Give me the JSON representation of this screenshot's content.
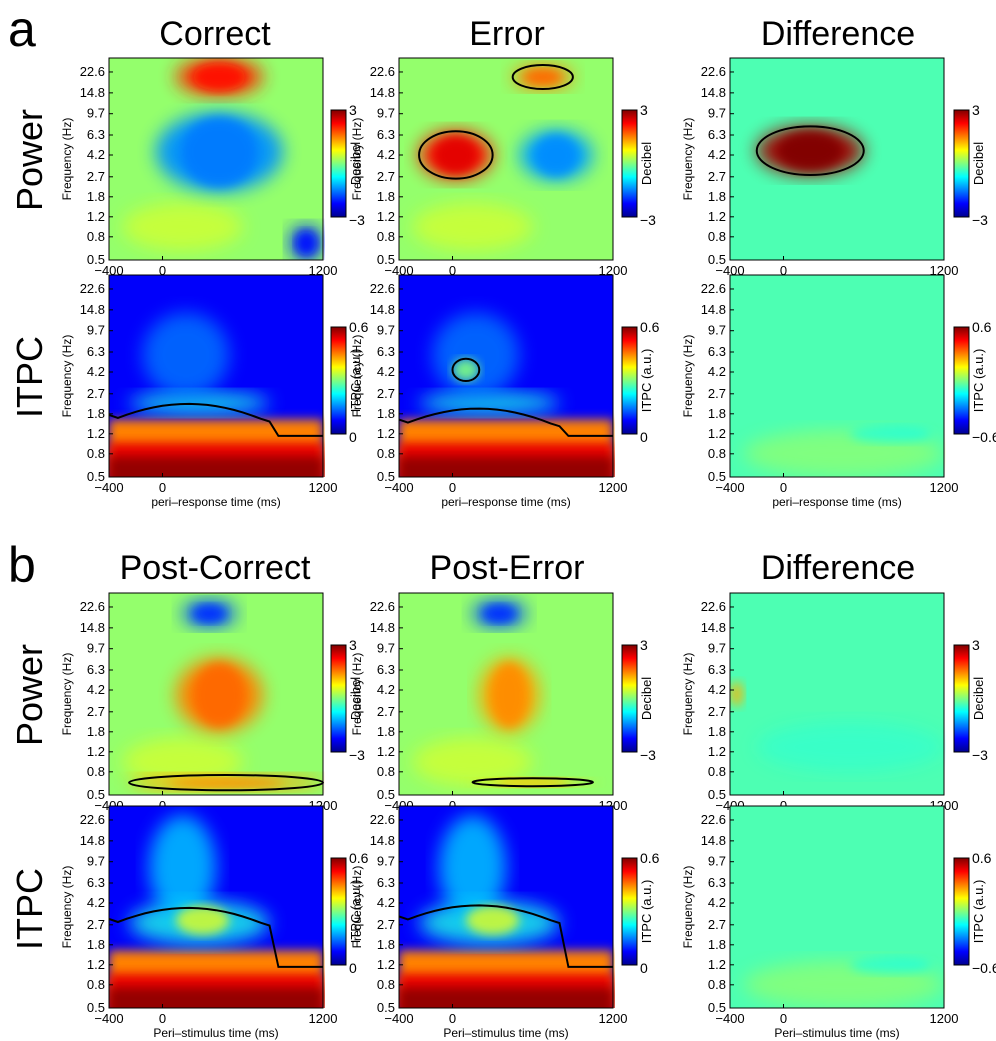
{
  "figure": {
    "panels": [
      {
        "letter": "a",
        "columns": [
          "Correct",
          "Error",
          "Difference"
        ],
        "rows": [
          "Power",
          "ITPC"
        ],
        "xlabel": "peri–response time (ms)"
      },
      {
        "letter": "b",
        "columns": [
          "Post-Correct",
          "Post-Error",
          "Difference"
        ],
        "rows": [
          "Power",
          "ITPC"
        ],
        "xlabel": "Peri–stimulus time (ms)"
      }
    ],
    "ylabel": "Frequency (Hz)",
    "x_ticks": [
      "-400",
      "0",
      "1200"
    ],
    "y_ticks": [
      "22.6",
      "14.8",
      "9.7",
      "6.3",
      "4.2",
      "2.7",
      "1.8",
      "1.2",
      "0.8",
      "0.5"
    ],
    "colorbars": {
      "power": {
        "label": "Decibel",
        "max": "3",
        "min": "-3"
      },
      "itpc": {
        "label": "ITPC (a.u.)",
        "max": "0.6",
        "min": "0"
      },
      "itpc_diff": {
        "label": "ITPC (a.u.)",
        "max": "0.6",
        "min": "-0.6"
      }
    },
    "colormap": [
      "#00008f",
      "#0000ff",
      "#0080ff",
      "#00ffff",
      "#80ff80",
      "#ffff00",
      "#ff8000",
      "#ff0000",
      "#800000"
    ]
  },
  "chart_data": {
    "type": "heatmap",
    "x": {
      "label_a": "peri–response time (ms)",
      "label_b": "Peri–stimulus time (ms)",
      "range": [
        -400,
        1200
      ],
      "ticks": [
        -400,
        0,
        1200
      ]
    },
    "y": {
      "label": "Frequency (Hz)",
      "scale": "log",
      "ticks": [
        22.6,
        14.8,
        9.7,
        6.3,
        4.2,
        2.7,
        1.8,
        1.2,
        0.8,
        0.5
      ]
    },
    "maps": [
      {
        "panel": "a",
        "condition": "Correct",
        "measure": "Power",
        "clim": [
          -3,
          3
        ],
        "features": [
          {
            "kind": "increase",
            "time_ms": [
              100,
              750
            ],
            "freq_hz": [
              14,
              30
            ],
            "peak_db": 2
          },
          {
            "kind": "decrease",
            "time_ms": [
              -50,
              900
            ],
            "freq_hz": [
              2,
              10
            ],
            "peak_db": -1.4
          },
          {
            "kind": "decrease",
            "time_ms": [
              950,
              1200
            ],
            "freq_hz": [
              0.5,
              1
            ],
            "peak_db": -2
          }
        ]
      },
      {
        "panel": "a",
        "condition": "Error",
        "measure": "Power",
        "clim": [
          -3,
          3
        ],
        "features": [
          {
            "kind": "significant increase (contoured)",
            "time_ms": [
              -250,
              300
            ],
            "freq_hz": [
              2.6,
              6.8
            ],
            "peak_db": 2.2
          },
          {
            "kind": "significant increase (contoured)",
            "time_ms": [
              450,
              900
            ],
            "freq_hz": [
              16,
              26
            ],
            "peak_db": 1.5
          },
          {
            "kind": "decrease",
            "time_ms": [
              500,
              1050
            ],
            "freq_hz": [
              2.5,
              7
            ],
            "peak_db": -1.3
          }
        ]
      },
      {
        "panel": "a",
        "condition": "Difference",
        "measure": "Power",
        "clim": [
          -3,
          3
        ],
        "features": [
          {
            "kind": "significant increase (contoured)",
            "time_ms": [
              -200,
              600
            ],
            "freq_hz": [
              2.8,
              7.5
            ],
            "peak_db": 2.8
          }
        ]
      },
      {
        "panel": "a",
        "condition": "Correct",
        "measure": "ITPC",
        "clim": [
          0,
          0.6
        ],
        "features": [
          {
            "kind": "significant phase locking (contoured)",
            "time_ms": [
              -400,
              1200
            ],
            "freq_hz": [
              0.5,
              2.2
            ],
            "peak": 0.6
          }
        ]
      },
      {
        "panel": "a",
        "condition": "Error",
        "measure": "ITPC",
        "clim": [
          0,
          0.6
        ],
        "features": [
          {
            "kind": "significant phase locking (contoured)",
            "time_ms": [
              -400,
              1200
            ],
            "freq_hz": [
              0.5,
              2.0
            ],
            "peak": 0.6
          },
          {
            "kind": "significant phase locking (contoured)",
            "time_ms": [
              0,
              200
            ],
            "freq_hz": [
              3.5,
              5.5
            ],
            "peak": 0.35
          }
        ]
      },
      {
        "panel": "a",
        "condition": "Difference",
        "measure": "ITPC",
        "clim": [
          -0.6,
          0.6
        ],
        "features": []
      },
      {
        "panel": "b",
        "condition": "Post-Correct",
        "measure": "Power",
        "clim": [
          -3,
          3
        ],
        "features": [
          {
            "kind": "increase",
            "time_ms": [
              100,
              750
            ],
            "freq_hz": [
              1.8,
              8
            ],
            "peak_db": 1.5
          },
          {
            "kind": "decrease",
            "time_ms": [
              150,
              550
            ],
            "freq_hz": [
              15,
              26
            ],
            "peak_db": -1.8
          },
          {
            "kind": "significant increase (contoured)",
            "time_ms": [
              -250,
              1200
            ],
            "freq_hz": [
              0.55,
              0.75
            ],
            "peak_db": 1.3
          }
        ]
      },
      {
        "panel": "b",
        "condition": "Post-Error",
        "measure": "Power",
        "clim": [
          -3,
          3
        ],
        "features": [
          {
            "kind": "increase",
            "time_ms": [
              200,
              650
            ],
            "freq_hz": [
              1.8,
              8
            ],
            "peak_db": 1.3
          },
          {
            "kind": "decrease",
            "time_ms": [
              150,
              550
            ],
            "freq_hz": [
              15,
              26
            ],
            "peak_db": -1.8
          },
          {
            "kind": "significant increase (contoured)",
            "time_ms": [
              150,
              1050
            ],
            "freq_hz": [
              0.6,
              0.7
            ],
            "peak_db": 1.0
          }
        ]
      },
      {
        "panel": "b",
        "condition": "Difference",
        "measure": "Power",
        "clim": [
          -3,
          3
        ],
        "features": []
      },
      {
        "panel": "b",
        "condition": "Post-Correct",
        "measure": "ITPC",
        "clim": [
          0,
          0.6
        ],
        "features": [
          {
            "kind": "significant phase locking (contoured)",
            "time_ms": [
              -400,
              1200
            ],
            "freq_hz": [
              0.5,
              3.8
            ],
            "peak": 0.6
          }
        ]
      },
      {
        "panel": "b",
        "condition": "Post-Error",
        "measure": "ITPC",
        "clim": [
          0,
          0.6
        ],
        "features": [
          {
            "kind": "significant phase locking (contoured)",
            "time_ms": [
              -400,
              1200
            ],
            "freq_hz": [
              0.5,
              4.0
            ],
            "peak": 0.6
          }
        ]
      },
      {
        "panel": "b",
        "condition": "Difference",
        "measure": "ITPC",
        "clim": [
          -0.6,
          0.6
        ],
        "features": []
      }
    ]
  }
}
